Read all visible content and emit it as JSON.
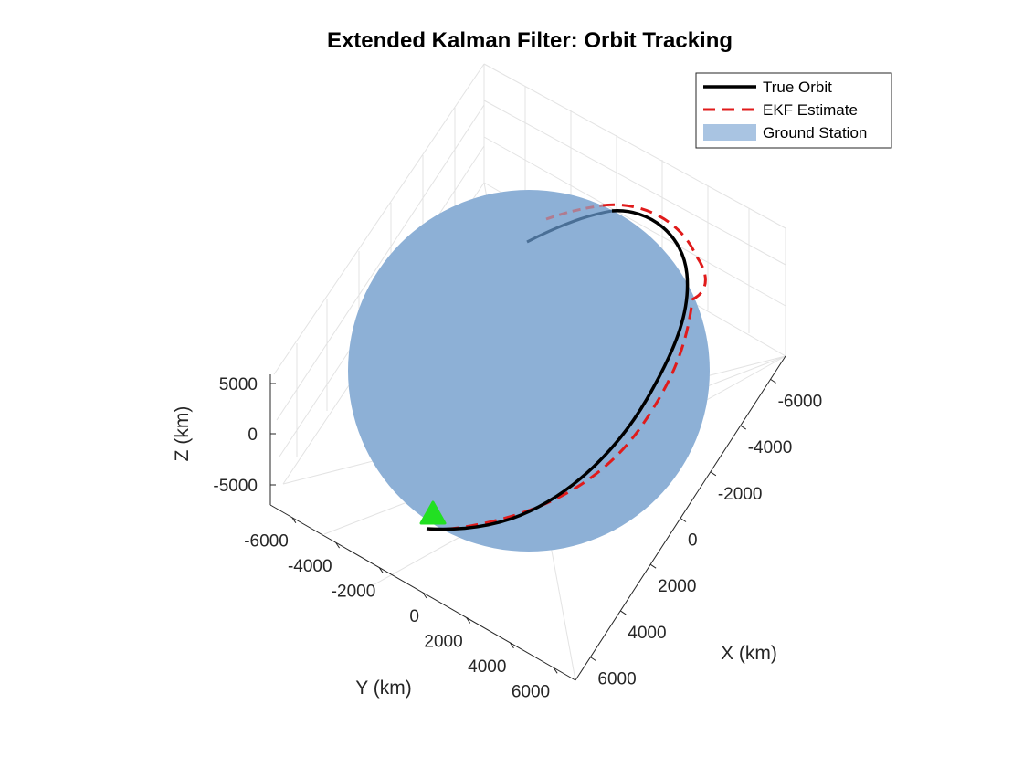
{
  "chart_data": {
    "type": "line3d",
    "title": "Extended Kalman Filter: Orbit Tracking",
    "xlabel": "X (km)",
    "ylabel": "Y (km)",
    "zlabel": "Z (km)",
    "x_ticks": [
      "-6000",
      "-4000",
      "-2000",
      "0",
      "2000",
      "4000",
      "6000"
    ],
    "y_ticks": [
      "-6000",
      "-4000",
      "-2000",
      "0",
      "2000",
      "4000",
      "6000"
    ],
    "z_ticks": [
      "5000",
      "0",
      "-5000"
    ],
    "xlim": [
      -7000,
      7000
    ],
    "ylim": [
      -7000,
      7000
    ],
    "zlim": [
      -6000,
      6000
    ],
    "grid": true,
    "legend_position": "top-right",
    "legend": [
      {
        "label": "True Orbit",
        "style": "solid",
        "color": "#000000"
      },
      {
        "label": "EKF Estimate",
        "style": "dashed",
        "color": "#e01b1b"
      },
      {
        "label": "Ground Station",
        "style": "patch",
        "color": "#a9c4e2"
      }
    ],
    "colors": {
      "earth": "#8db0d6",
      "true_orbit": "#000000",
      "ekf": "#e01b1b",
      "marker": "#22e022"
    },
    "earth_radius_km": 6371
  }
}
